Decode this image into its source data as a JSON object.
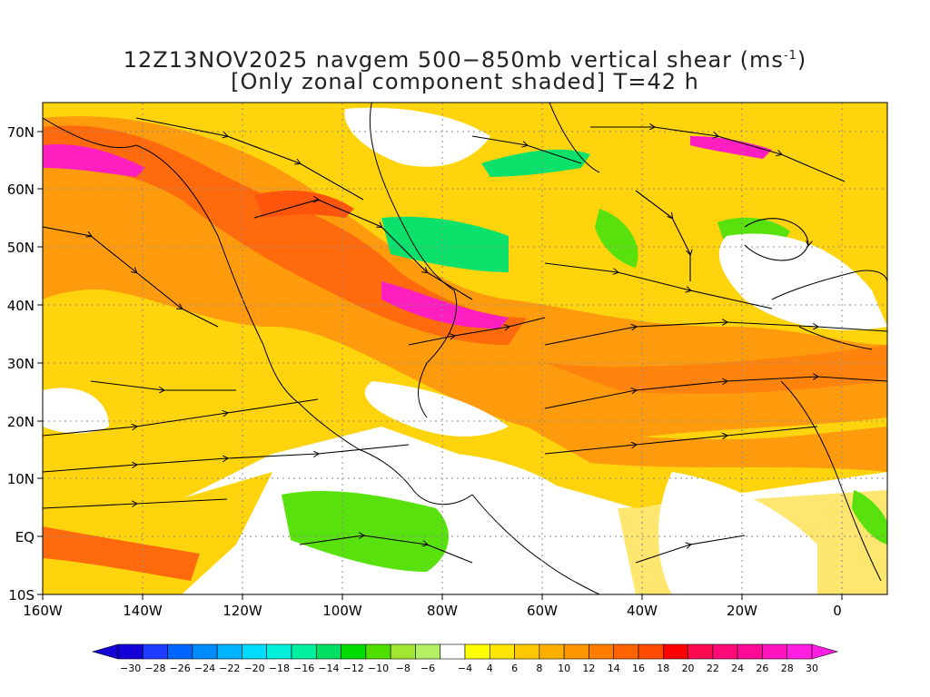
{
  "title": {
    "line1_main": "12Z13NOV2025 navgem 500−850mb vertical shear (ms",
    "line1_sup": "-1",
    "line1_end": ")",
    "line2": "[Only zonal component shaded] T=42 h"
  },
  "lat_labels": [
    "70N",
    "60N",
    "50N",
    "40N",
    "30N",
    "20N",
    "10N",
    "EQ",
    "10S"
  ],
  "lon_labels": [
    "160W",
    "140W",
    "120W",
    "100W",
    "80W",
    "60W",
    "40W",
    "20W",
    "0"
  ],
  "colorbar": {
    "labels": [
      "−30",
      "−28",
      "−26",
      "−24",
      "−22",
      "−20",
      "−18",
      "−16",
      "−14",
      "−12",
      "−10",
      "−8",
      "−6",
      "−4",
      "4",
      "6",
      "8",
      "10",
      "12",
      "14",
      "16",
      "18",
      "20",
      "22",
      "24",
      "26",
      "28",
      "30"
    ],
    "colors": [
      "#1400d7",
      "#1e3cff",
      "#0064ff",
      "#008cff",
      "#00b4ff",
      "#00dcff",
      "#00f0dc",
      "#00f0a0",
      "#00e064",
      "#00dc00",
      "#50e000",
      "#a0e632",
      "#b4f064",
      "#ffffff",
      "#ffff00",
      "#ffe600",
      "#ffc800",
      "#ffaf00",
      "#ff9600",
      "#ff7d00",
      "#ff6400",
      "#ff4b00",
      "#ff0000",
      "#ff0a50",
      "#ff0a78",
      "#ff0a96",
      "#ff14be",
      "#ff1ee1"
    ]
  },
  "map": {
    "shear_pattern": "zonal vertical shear shading with streamlines",
    "colors": {
      "pos_low": "#ffff00",
      "pos_mid": "#ff9600",
      "pos_high": "#ff4b00",
      "pos_max": "#ff14be",
      "neg": "#a0e632",
      "neg_strong": "#00e064",
      "coast": "#000000",
      "grid": "#888888"
    }
  }
}
